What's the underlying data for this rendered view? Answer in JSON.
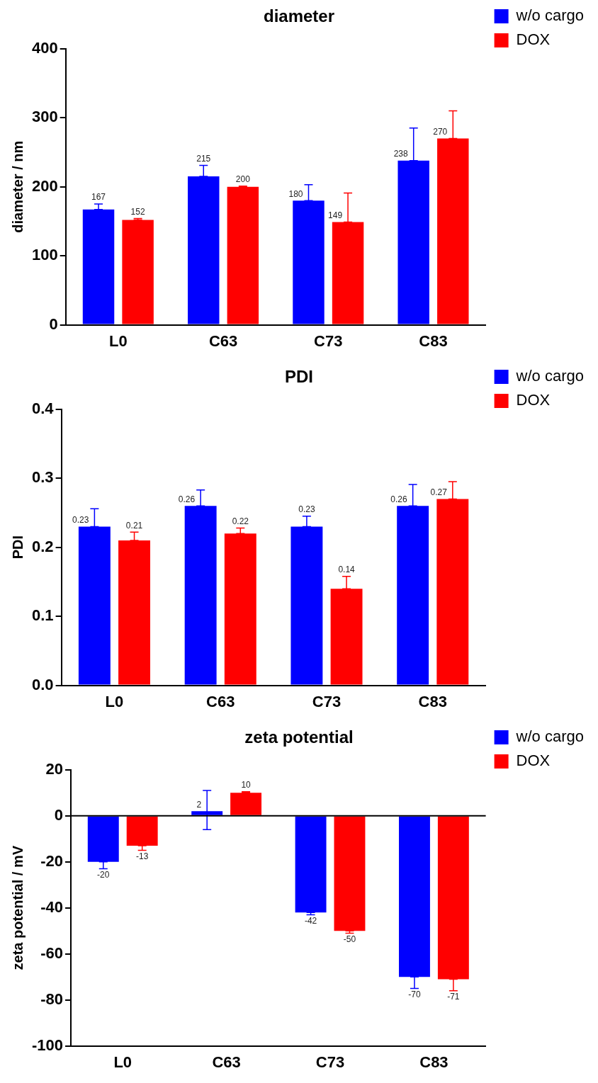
{
  "chart_data": [
    {
      "type": "bar",
      "title": "diameter",
      "ylabel": "diameter / nm",
      "categories": [
        "L0",
        "C63",
        "C73",
        "C83"
      ],
      "ylim": [
        0,
        400
      ],
      "yticks": [
        0,
        100,
        200,
        300,
        400
      ],
      "grid": false,
      "legend": "top right",
      "data_labels": true,
      "series": [
        {
          "name": "w/o cargo",
          "color": "#0000ff",
          "values": [
            167,
            215,
            180,
            238
          ],
          "errors": [
            [
              167,
              175
            ],
            [
              215,
              231
            ],
            [
              180,
              203
            ],
            [
              238,
              285
            ]
          ]
        },
        {
          "name": "DOX",
          "color": "#ff0000",
          "values": [
            152,
            200,
            149,
            270
          ],
          "errors": [
            [
              152,
              154
            ],
            [
              200,
              201
            ],
            [
              149,
              191
            ],
            [
              270,
              310
            ]
          ]
        }
      ]
    },
    {
      "type": "bar",
      "title": "PDI",
      "ylabel": "PDI",
      "categories": [
        "L0",
        "C63",
        "C73",
        "C83"
      ],
      "ylim": [
        0,
        0.4
      ],
      "yticks": [
        {
          "value": 0,
          "label": "0.0"
        },
        0.1,
        0.2,
        0.3,
        0.4
      ],
      "grid": false,
      "legend": "top right",
      "data_labels": true,
      "series": [
        {
          "name": "w/o cargo",
          "color": "#0000ff",
          "values": [
            0.23,
            0.26,
            0.23,
            0.26
          ],
          "errors": [
            [
              0.23,
              0.256
            ],
            [
              0.26,
              0.283
            ],
            [
              0.23,
              0.245
            ],
            [
              0.26,
              0.291
            ]
          ]
        },
        {
          "name": "DOX",
          "color": "#ff0000",
          "values": [
            0.21,
            0.22,
            0.14,
            0.27
          ],
          "errors": [
            [
              0.21,
              0.222
            ],
            [
              0.22,
              0.228
            ],
            [
              0.14,
              0.158
            ],
            [
              0.27,
              0.295
            ]
          ]
        }
      ]
    },
    {
      "type": "bar",
      "title": "zeta potential",
      "ylabel": "zeta potential / mV",
      "categories": [
        "L0",
        "C63",
        "C73",
        "C83"
      ],
      "ylim": [
        -100,
        20
      ],
      "yticks": [
        -100,
        -80,
        -60,
        -40,
        -20,
        0,
        20
      ],
      "grid": false,
      "legend": "top right",
      "data_labels": true,
      "ref_lines": [
        {
          "axis": "y",
          "value": 0,
          "color": "#000000"
        }
      ],
      "series": [
        {
          "name": "w/o cargo",
          "color": "#0000ff",
          "values": [
            -20,
            2,
            -42,
            -70
          ],
          "errors": [
            [
              -23,
              -20
            ],
            [
              -6,
              11
            ],
            [
              -43,
              -42
            ],
            [
              -75,
              -70
            ]
          ]
        },
        {
          "name": "DOX",
          "color": "#ff0000",
          "values": [
            -13,
            10,
            -50,
            -71
          ],
          "errors": [
            [
              -15,
              -13
            ],
            [
              10,
              10.5
            ],
            [
              -51,
              -50
            ],
            [
              -76,
              -71
            ]
          ]
        }
      ]
    }
  ]
}
